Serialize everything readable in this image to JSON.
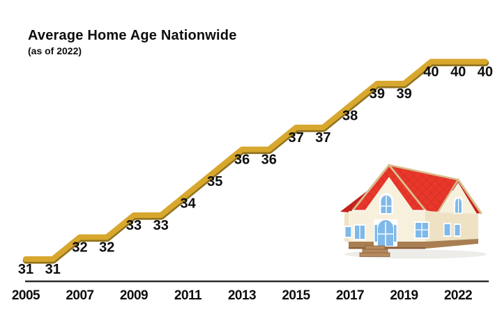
{
  "header": {
    "title": "Average Home Age Nationwide",
    "subtitle": "(as of 2022)"
  },
  "chart_data": {
    "type": "line",
    "title": "Average Home Age Nationwide",
    "subtitle": "(as of 2022)",
    "x": [
      2005,
      2006,
      2007,
      2008,
      2009,
      2010,
      2011,
      2012,
      2013,
      2014,
      2015,
      2016,
      2017,
      2018,
      2019,
      2020,
      2021,
      2022
    ],
    "values": [
      31,
      31,
      32,
      32,
      33,
      33,
      34,
      35,
      36,
      36,
      37,
      37,
      38,
      39,
      39,
      40,
      40,
      40
    ],
    "point_labels": [
      "31",
      "31",
      "32",
      "32",
      "33",
      "33",
      "34",
      "35",
      "36",
      "36",
      "37",
      "37",
      "38",
      "39",
      "39",
      "40",
      "40",
      "40"
    ],
    "x_tick_labels": [
      "2005",
      "2007",
      "2009",
      "2011",
      "2013",
      "2015",
      "2017",
      "2019",
      "2022"
    ],
    "xlabel": "",
    "ylabel": "",
    "ylim": [
      30,
      41
    ],
    "grid": false,
    "legend": false,
    "line_color": "#D7A72E",
    "line_edge_color": "#8F721C",
    "axis_color": "#2A2A2A",
    "text_color": "#0D0D0D"
  },
  "illustration": {
    "name": "house",
    "colors": {
      "roof": "#E8372B",
      "roof-dark": "#C4231D",
      "tile-line": "#B71C16",
      "wall": "#F7F0DD",
      "wall-shade": "#EFE2C4",
      "trim": "#D8BC8C",
      "frame": "#FFFFFF",
      "glass": "#7FB9E9",
      "glass-light": "#D2EAFB",
      "base": "#A97E52",
      "base-dark": "#8A6240",
      "step": "#B68A5C",
      "shadow": "#9A9484"
    }
  }
}
